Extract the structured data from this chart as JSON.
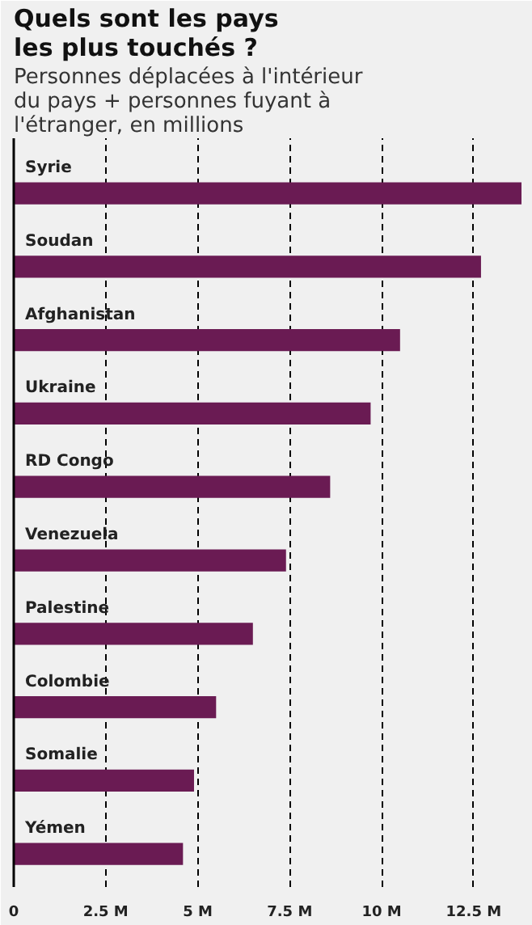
{
  "chart_data": {
    "type": "bar",
    "orientation": "horizontal",
    "title": "Quels sont les pays les plus touchés ?",
    "subtitle": "Personnes déplacées à l'intérieur du pays + personnes fuyant à l'étranger, en millions",
    "categories": [
      "Syrie",
      "Soudan",
      "Afghanistan",
      "Ukraine",
      "RD Congo",
      "Venezuela",
      "Palestine",
      "Colombie",
      "Somalie",
      "Yémen"
    ],
    "values": [
      13.8,
      12.7,
      10.5,
      9.7,
      8.6,
      7.4,
      6.5,
      5.5,
      4.9,
      4.6
    ],
    "color": "#6a1b53",
    "xlim": [
      0,
      13.8
    ],
    "xticks": [
      0,
      {
        "value": 2.5,
        "label": "2.5 M"
      },
      {
        "value": 5,
        "label": "5 M"
      },
      {
        "value": 7.5,
        "label": "7.5 M"
      },
      {
        "value": 10,
        "label": "10 M"
      },
      {
        "value": 12.5,
        "label": "12.5 M"
      }
    ],
    "grid": "x"
  }
}
